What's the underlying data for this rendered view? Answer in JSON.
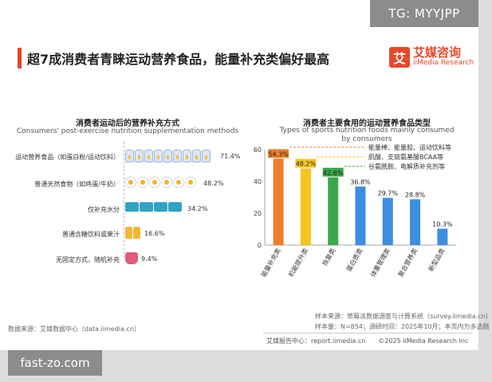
{
  "watermark_top": "TG: MYYJPP",
  "watermark_bottom": "fast-zo.com",
  "title": "超7成消费者青睐运动营养食品，能量补充类偏好最高",
  "logo": {
    "mark": "艾",
    "cn": "艾媒咨询",
    "en": "iiMedia Research"
  },
  "left_chart": {
    "title_cn": "消费者运动后的营养补充方式",
    "title_en": "Consumers' post-exercise nutrition supplementation methods"
  },
  "right_chart": {
    "title_cn": "消费者主要食用的运动营养食品类型",
    "title_en_line1": "Types of sports nutrition foods mainly consumed",
    "title_en_line2": "by consumers"
  },
  "source_left": "数据来源：艾媒数据中心（data.iimedia.cn）",
  "notes": {
    "sample_source": "样本来源：草莓派数据调查与计算系统（survey.iimedia.cn）",
    "sample_info": "样本量：N=854；调研时间：2025年10月；本页内为多选题"
  },
  "footer": "艾媒报告中心：report.iimedia.cn　　©2025  iiMedia Research  Inc",
  "chart_data": [
    {
      "type": "bar",
      "orientation": "horizontal",
      "title": "消费者运动后的营养补充方式",
      "subtitle": "Consumers' post-exercise nutrition supplementation methods",
      "categories": [
        "运动营养食品（如蛋白粉/运动饮料）",
        "普通天然食物（如鸡蛋/牛奶）",
        "仅补充水分",
        "普通含糖饮料或果汁",
        "无固定方式，随机补充"
      ],
      "values": [
        71.4,
        48.2,
        34.2,
        16.6,
        9.4
      ],
      "value_labels": [
        "71.4%",
        "48.2%",
        "34.2%",
        "16.6%",
        "9.4%"
      ],
      "icons": [
        "bottle-icon",
        "egg-icon",
        "water-bottle-icon",
        "can-icon",
        "cup-icon"
      ]
    },
    {
      "type": "bar",
      "title": "消费者主要食用的运动营养食品类型",
      "subtitle": "Types of sports nutrition foods mainly consumed by consumers",
      "categories": [
        "能量补充类",
        "机能提升类",
        "恢复类",
        "蛋白质类",
        "体重管理类",
        "复合营养类",
        "新型品类"
      ],
      "values": [
        54.3,
        48.2,
        42.6,
        36.8,
        29.7,
        28.8,
        10.3
      ],
      "value_labels": [
        "54.3%",
        "48.2%",
        "42.6%",
        "36.8%",
        "29.7%",
        "28.8%",
        "10.3%"
      ],
      "colors": [
        "#f07e2a",
        "#f7c520",
        "#3aa84a",
        "#3d8ee0",
        "#3d8ee0",
        "#3d8ee0",
        "#3d8ee0"
      ],
      "yticks": [
        0,
        20,
        40,
        60
      ],
      "ylim": [
        0,
        60
      ],
      "grid": false,
      "annotations": [
        "能量棒、能量胶、运动饮料等",
        "肌酸、支链氨基酸BCAA等",
        "谷氨酰胺、电解质补充剂等"
      ]
    }
  ]
}
